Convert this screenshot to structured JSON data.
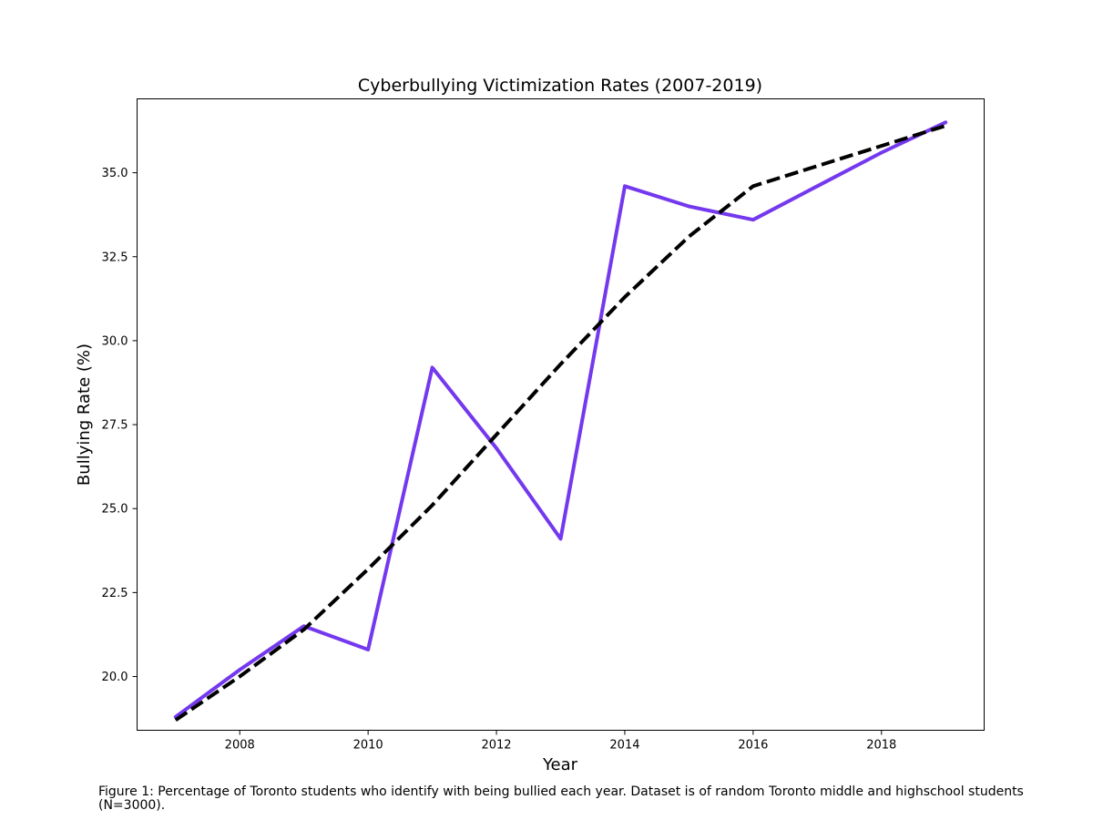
{
  "caption": "Figure 1: Percentage of Toronto students who identify with being bullied each year. Dataset is of random Toronto middle and highschool students (N=3000).",
  "chart_data": {
    "type": "line",
    "title": "Cyberbullying Victimization Rates (2007-2019)",
    "xlabel": "Year",
    "ylabel": "Bullying Rate (%)",
    "x": [
      2007,
      2008,
      2009,
      2010,
      2011,
      2012,
      2013,
      2014,
      2015,
      2016,
      2017,
      2018,
      2019
    ],
    "xlim": [
      2006.4,
      2019.6
    ],
    "ylim": [
      18.4,
      37.2
    ],
    "xticks": [
      2008,
      2010,
      2012,
      2014,
      2016,
      2018
    ],
    "xtick_labels": [
      "2008",
      "2010",
      "2012",
      "2014",
      "2016",
      "2018"
    ],
    "yticks": [
      20.0,
      22.5,
      25.0,
      27.5,
      30.0,
      32.5,
      35.0
    ],
    "ytick_labels": [
      "20.0",
      "22.5",
      "25.0",
      "27.5",
      "30.0",
      "32.5",
      "35.0"
    ],
    "grid": false,
    "legend": false,
    "series": [
      {
        "values": [
          18.8,
          20.2,
          21.5,
          20.8,
          29.2,
          26.8,
          24.1,
          34.6,
          34.0,
          33.6,
          34.6,
          35.6,
          36.5
        ],
        "color": "#7438ee",
        "style": "solid"
      },
      {
        "values": [
          18.7,
          20.0,
          21.4,
          23.2,
          25.1,
          27.2,
          29.3,
          31.3,
          33.1,
          34.6,
          35.2,
          35.8,
          36.4
        ],
        "color": "#000000",
        "style": "dashed"
      }
    ]
  }
}
